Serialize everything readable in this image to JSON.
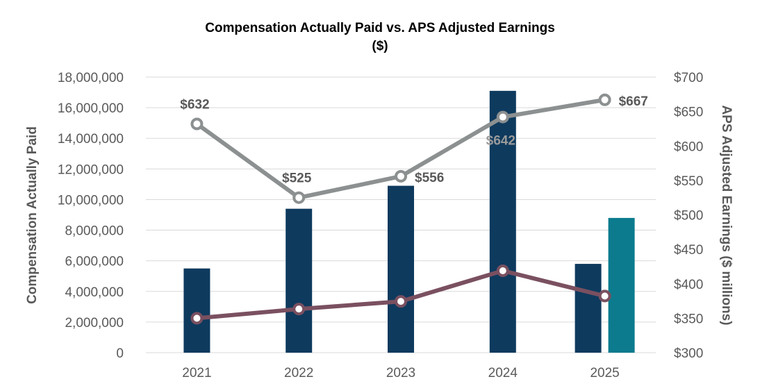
{
  "chart_data": {
    "type": "bar",
    "title_line1": "Compensation Actually Paid vs. APS Adjusted Earnings",
    "title_line2": "($)",
    "ylabel": "Compensation Actually Paid",
    "y2label": "APS Adjusted Earnings ($ millions)",
    "categories": [
      "2021",
      "2022",
      "2023",
      "2024",
      "2025"
    ],
    "ylim": [
      0,
      18000000
    ],
    "y_ticks": [
      "0",
      "2,000,000",
      "4,000,000",
      "6,000,000",
      "8,000,000",
      "10,000,000",
      "12,000,000",
      "14,000,000",
      "16,000,000",
      "18,000,000"
    ],
    "y2lim": [
      300,
      700
    ],
    "y2_ticks": [
      "$300",
      "$350",
      "$400",
      "$450",
      "$500",
      "$550",
      "$600",
      "$650",
      "$700"
    ],
    "bar_series": [
      {
        "values": [
          5500000,
          9400000,
          10900000,
          17100000,
          5800000
        ],
        "color": "#0e3a5e"
      },
      {
        "values": [
          null,
          null,
          null,
          null,
          8800000
        ],
        "color": "#0c7b8e"
      }
    ],
    "line_series": [
      {
        "axis": "y2",
        "values": [
          632,
          525,
          556,
          642,
          667
        ],
        "labels": [
          "$632",
          "$525",
          "$556",
          "$642",
          "$667"
        ],
        "color": "#8c9090"
      },
      {
        "axis": "y",
        "values": [
          2250000,
          2850000,
          3350000,
          5350000,
          3700000
        ],
        "color": "#7a5060"
      }
    ],
    "grid": true
  }
}
